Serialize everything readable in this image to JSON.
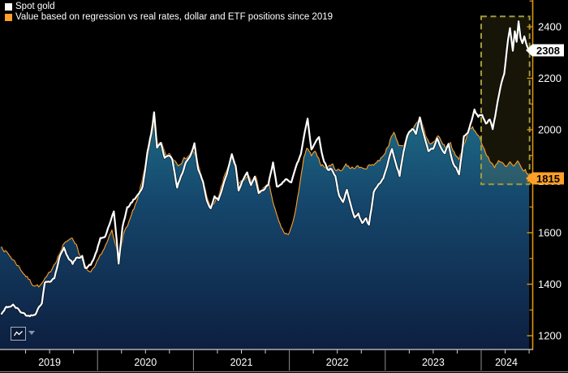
{
  "legend": [
    {
      "label": "Spot gold",
      "color": "#ffffff"
    },
    {
      "label": "Value based on regression vs real rates, dollar and ETF positions since 2019",
      "color": "#ffa028"
    }
  ],
  "badges": {
    "spot": {
      "value": "2308",
      "bg": "#ffffff",
      "text_color": "#000000"
    },
    "model": {
      "value": "1815",
      "bg": "#ffa028",
      "text_color": "#000000"
    }
  },
  "y_axis": {
    "side": "right",
    "labeled_ticks": [
      2400,
      2200,
      2000,
      1800,
      1600,
      1400,
      1200
    ],
    "minor_ticks": [
      2500,
      2300,
      2100,
      1900,
      1700,
      1500,
      1300
    ],
    "spine_color": "#e0940f",
    "label_color": "#ffffff"
  },
  "x_axis": {
    "years": [
      "2019",
      "2020",
      "2021",
      "2022",
      "2023",
      "2024"
    ],
    "label_color": "#ffffff"
  },
  "controls": {
    "chart_type_button": {
      "icon": "line-chart-icon"
    },
    "chart_type_dropdown": {
      "icon": "chevron-down-icon"
    }
  },
  "colors": {
    "background": "#000000",
    "spot_line": "#ffffff",
    "model_line": "#ffa028",
    "area_gradient_top": "#2d8fa6",
    "area_gradient_upper": "#1e6e88",
    "area_gradient_mid": "#15466b",
    "area_gradient_bottom": "#0d1f40",
    "highlight_box_stroke": "#a09b3c",
    "highlight_box_fill": "rgba(210,195,65,0.11)",
    "bottom_axis_line": "#cfcfcf",
    "year_separator": "#8f8f8f"
  },
  "chart_data": {
    "type": "line",
    "title": "",
    "xlabel": "",
    "ylabel": "",
    "x_range": [
      2019.0,
      2024.53
    ],
    "ylim_labeled": [
      1200,
      2400
    ],
    "grid": false,
    "legend_position": "top-left",
    "last_values": {
      "spot": 2308,
      "model": 1815
    },
    "annotation_box": {
      "x0": 2024.0,
      "x1": 2024.505,
      "v0": 1788,
      "v1": 2440,
      "style": "dashed"
    },
    "series": [
      {
        "name": "Spot gold",
        "color": "#ffffff",
        "width": 2.2,
        "area": false,
        "points": [
          [
            2019.0,
            1285
          ],
          [
            2019.05,
            1310
          ],
          [
            2019.12,
            1318
          ],
          [
            2019.2,
            1293
          ],
          [
            2019.28,
            1276
          ],
          [
            2019.35,
            1287
          ],
          [
            2019.42,
            1330
          ],
          [
            2019.45,
            1405
          ],
          [
            2019.5,
            1413
          ],
          [
            2019.55,
            1425
          ],
          [
            2019.6,
            1500
          ],
          [
            2019.65,
            1545
          ],
          [
            2019.7,
            1497
          ],
          [
            2019.74,
            1480
          ],
          [
            2019.79,
            1505
          ],
          [
            2019.84,
            1512
          ],
          [
            2019.87,
            1460
          ],
          [
            2019.93,
            1475
          ],
          [
            2019.98,
            1517
          ],
          [
            2020.03,
            1575
          ],
          [
            2020.08,
            1585
          ],
          [
            2020.14,
            1650
          ],
          [
            2020.17,
            1680
          ],
          [
            2020.2,
            1565
          ],
          [
            2020.22,
            1478
          ],
          [
            2020.26,
            1625
          ],
          [
            2020.31,
            1695
          ],
          [
            2020.36,
            1720
          ],
          [
            2020.42,
            1745
          ],
          [
            2020.47,
            1780
          ],
          [
            2020.52,
            1910
          ],
          [
            2020.56,
            1985
          ],
          [
            2020.59,
            2066
          ],
          [
            2020.62,
            1935
          ],
          [
            2020.66,
            1945
          ],
          [
            2020.7,
            1890
          ],
          [
            2020.74,
            1905
          ],
          [
            2020.78,
            1885
          ],
          [
            2020.83,
            1780
          ],
          [
            2020.87,
            1815
          ],
          [
            2020.92,
            1875
          ],
          [
            2020.97,
            1900
          ],
          [
            2021.01,
            1945
          ],
          [
            2021.05,
            1845
          ],
          [
            2021.1,
            1800
          ],
          [
            2021.14,
            1725
          ],
          [
            2021.18,
            1695
          ],
          [
            2021.22,
            1745
          ],
          [
            2021.26,
            1730
          ],
          [
            2021.31,
            1780
          ],
          [
            2021.36,
            1845
          ],
          [
            2021.4,
            1900
          ],
          [
            2021.44,
            1860
          ],
          [
            2021.47,
            1765
          ],
          [
            2021.52,
            1805
          ],
          [
            2021.56,
            1830
          ],
          [
            2021.6,
            1790
          ],
          [
            2021.64,
            1815
          ],
          [
            2021.68,
            1750
          ],
          [
            2021.73,
            1765
          ],
          [
            2021.78,
            1785
          ],
          [
            2021.83,
            1870
          ],
          [
            2021.87,
            1785
          ],
          [
            2021.92,
            1785
          ],
          [
            2021.97,
            1810
          ],
          [
            2022.02,
            1800
          ],
          [
            2022.07,
            1855
          ],
          [
            2022.12,
            1905
          ],
          [
            2022.16,
            1990
          ],
          [
            2022.19,
            2045
          ],
          [
            2022.23,
            1925
          ],
          [
            2022.27,
            1950
          ],
          [
            2022.31,
            1975
          ],
          [
            2022.35,
            1890
          ],
          [
            2022.4,
            1845
          ],
          [
            2022.44,
            1850
          ],
          [
            2022.48,
            1820
          ],
          [
            2022.52,
            1740
          ],
          [
            2022.56,
            1715
          ],
          [
            2022.6,
            1765
          ],
          [
            2022.64,
            1715
          ],
          [
            2022.68,
            1660
          ],
          [
            2022.72,
            1670
          ],
          [
            2022.76,
            1640
          ],
          [
            2022.8,
            1655
          ],
          [
            2022.83,
            1628
          ],
          [
            2022.88,
            1755
          ],
          [
            2022.93,
            1785
          ],
          [
            2022.98,
            1810
          ],
          [
            2023.03,
            1870
          ],
          [
            2023.07,
            1925
          ],
          [
            2023.11,
            1865
          ],
          [
            2023.15,
            1820
          ],
          [
            2023.19,
            1915
          ],
          [
            2023.23,
            1975
          ],
          [
            2023.28,
            2005
          ],
          [
            2023.32,
            1985
          ],
          [
            2023.36,
            2045
          ],
          [
            2023.41,
            1965
          ],
          [
            2023.45,
            1920
          ],
          [
            2023.5,
            1925
          ],
          [
            2023.54,
            1965
          ],
          [
            2023.58,
            1935
          ],
          [
            2023.62,
            1912
          ],
          [
            2023.66,
            1942
          ],
          [
            2023.71,
            1868
          ],
          [
            2023.74,
            1850
          ],
          [
            2023.77,
            1822
          ],
          [
            2023.82,
            1975
          ],
          [
            2023.86,
            1990
          ],
          [
            2023.9,
            2035
          ],
          [
            2023.93,
            2078
          ],
          [
            2023.97,
            2048
          ],
          [
            2024.01,
            2062
          ],
          [
            2024.05,
            2028
          ],
          [
            2024.09,
            2038
          ],
          [
            2024.12,
            2002
          ],
          [
            2024.16,
            2083
          ],
          [
            2024.2,
            2165
          ],
          [
            2024.24,
            2220
          ],
          [
            2024.28,
            2350
          ],
          [
            2024.3,
            2392
          ],
          [
            2024.33,
            2305
          ],
          [
            2024.35,
            2378
          ],
          [
            2024.37,
            2342
          ],
          [
            2024.39,
            2425
          ],
          [
            2024.41,
            2358
          ],
          [
            2024.43,
            2335
          ],
          [
            2024.45,
            2365
          ],
          [
            2024.47,
            2332
          ],
          [
            2024.5,
            2308
          ]
        ]
      },
      {
        "name": "Value based on regression vs real rates, dollar and ETF positions since 2019",
        "color": "#ffa028",
        "width": 1.1,
        "area": true,
        "points": [
          [
            2019.0,
            1545
          ],
          [
            2019.08,
            1512
          ],
          [
            2019.16,
            1478
          ],
          [
            2019.24,
            1438
          ],
          [
            2019.32,
            1402
          ],
          [
            2019.4,
            1392
          ],
          [
            2019.48,
            1430
          ],
          [
            2019.56,
            1488
          ],
          [
            2019.64,
            1548
          ],
          [
            2019.72,
            1585
          ],
          [
            2019.78,
            1555
          ],
          [
            2019.83,
            1498
          ],
          [
            2019.88,
            1462
          ],
          [
            2019.93,
            1442
          ],
          [
            2019.98,
            1468
          ],
          [
            2020.04,
            1520
          ],
          [
            2020.1,
            1562
          ],
          [
            2020.15,
            1605
          ],
          [
            2020.19,
            1545
          ],
          [
            2020.22,
            1512
          ],
          [
            2020.27,
            1592
          ],
          [
            2020.34,
            1655
          ],
          [
            2020.42,
            1728
          ],
          [
            2020.49,
            1845
          ],
          [
            2020.54,
            1935
          ],
          [
            2020.59,
            2018
          ],
          [
            2020.63,
            1935
          ],
          [
            2020.67,
            1952
          ],
          [
            2020.71,
            1898
          ],
          [
            2020.75,
            1908
          ],
          [
            2020.79,
            1888
          ],
          [
            2020.84,
            1868
          ],
          [
            2020.89,
            1882
          ],
          [
            2020.94,
            1898
          ],
          [
            2021.0,
            1918
          ],
          [
            2021.05,
            1862
          ],
          [
            2021.1,
            1795
          ],
          [
            2021.15,
            1735
          ],
          [
            2021.18,
            1692
          ],
          [
            2021.26,
            1742
          ],
          [
            2021.33,
            1825
          ],
          [
            2021.39,
            1888
          ],
          [
            2021.43,
            1872
          ],
          [
            2021.47,
            1788
          ],
          [
            2021.52,
            1802
          ],
          [
            2021.57,
            1822
          ],
          [
            2021.61,
            1798
          ],
          [
            2021.65,
            1818
          ],
          [
            2021.69,
            1758
          ],
          [
            2021.74,
            1772
          ],
          [
            2021.79,
            1785
          ],
          [
            2021.84,
            1702
          ],
          [
            2021.89,
            1642
          ],
          [
            2021.94,
            1602
          ],
          [
            2021.99,
            1592
          ],
          [
            2022.03,
            1625
          ],
          [
            2022.07,
            1705
          ],
          [
            2022.11,
            1788
          ],
          [
            2022.15,
            1885
          ],
          [
            2022.18,
            1928
          ],
          [
            2022.23,
            1898
          ],
          [
            2022.28,
            1912
          ],
          [
            2022.33,
            1868
          ],
          [
            2022.39,
            1848
          ],
          [
            2022.44,
            1868
          ],
          [
            2022.49,
            1845
          ],
          [
            2022.54,
            1842
          ],
          [
            2022.59,
            1868
          ],
          [
            2022.64,
            1848
          ],
          [
            2022.7,
            1858
          ],
          [
            2022.76,
            1848
          ],
          [
            2022.82,
            1858
          ],
          [
            2022.88,
            1868
          ],
          [
            2022.94,
            1882
          ],
          [
            2023.0,
            1915
          ],
          [
            2023.05,
            1958
          ],
          [
            2023.09,
            1988
          ],
          [
            2023.14,
            1945
          ],
          [
            2023.18,
            1932
          ],
          [
            2023.23,
            1972
          ],
          [
            2023.28,
            2008
          ],
          [
            2023.32,
            2018
          ],
          [
            2023.37,
            2038
          ],
          [
            2023.42,
            1978
          ],
          [
            2023.46,
            1948
          ],
          [
            2023.51,
            1952
          ],
          [
            2023.55,
            1978
          ],
          [
            2023.6,
            1945
          ],
          [
            2023.64,
            1928
          ],
          [
            2023.68,
            1948
          ],
          [
            2023.73,
            1898
          ],
          [
            2023.77,
            1885
          ],
          [
            2023.81,
            1928
          ],
          [
            2023.86,
            1988
          ],
          [
            2023.91,
            2005
          ],
          [
            2023.96,
            1988
          ],
          [
            2024.01,
            1948
          ],
          [
            2024.06,
            1898
          ],
          [
            2024.1,
            1872
          ],
          [
            2024.14,
            1858
          ],
          [
            2024.18,
            1882
          ],
          [
            2024.22,
            1868
          ],
          [
            2024.26,
            1852
          ],
          [
            2024.3,
            1872
          ],
          [
            2024.34,
            1855
          ],
          [
            2024.38,
            1872
          ],
          [
            2024.42,
            1848
          ],
          [
            2024.46,
            1842
          ],
          [
            2024.5,
            1815
          ]
        ]
      }
    ]
  }
}
